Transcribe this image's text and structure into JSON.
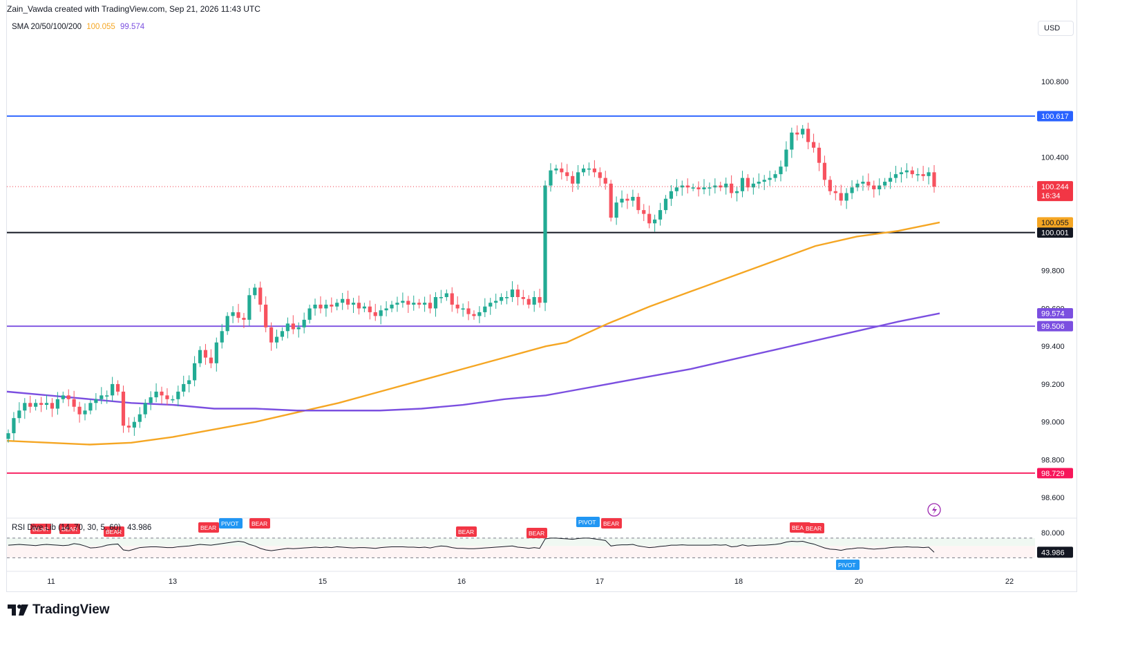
{
  "header": {
    "created_by": "Zain_Vawda created with TradingView.com, Sep 21, 2026 11:43 UTC"
  },
  "sma_legend": {
    "label": "SMA 20/50/100/200",
    "value_1": "100.055",
    "value_2": "99.574",
    "color_1": "#f5a623",
    "color_2": "#7b4fe0"
  },
  "currency": "USD",
  "rsi_legend": {
    "label": "RSI Dive Lib (14, 70, 30, 5, 60)",
    "value": "43.986"
  },
  "footer": {
    "brand": "TradingView"
  },
  "chart_data": [
    {
      "type": "candlestick",
      "price_axis": {
        "ticks": [
          "100.800",
          "100.400",
          "99.800",
          "99.600",
          "99.400",
          "99.200",
          "99.000",
          "98.800",
          "98.600"
        ],
        "range": [
          98.52,
          100.98
        ]
      },
      "time_axis": {
        "ticks": [
          "11",
          "13",
          "15",
          "16",
          "17",
          "18",
          "20",
          "22"
        ]
      },
      "horizontal_lines": [
        {
          "name": "resistance",
          "value": 100.617,
          "label": "100.617",
          "color": "#2962ff"
        },
        {
          "name": "support",
          "value": 100.001,
          "label": "100.001",
          "color": "#131722"
        },
        {
          "name": "support-2",
          "value": 99.506,
          "label": "99.506",
          "color": "#7b4fe0"
        },
        {
          "name": "support-3",
          "value": 98.729,
          "label": "98.729",
          "color": "#f7165a"
        }
      ],
      "last_price": {
        "value": "100.244",
        "countdown": "16:34",
        "color": "#f23645"
      },
      "sma_tags": [
        {
          "value": "100.055",
          "color": "#f5a623"
        },
        {
          "value": "99.574",
          "color": "#7b4fe0"
        }
      ],
      "close_series": [
        98.94,
        99.02,
        99.06,
        99.1,
        99.08,
        99.1,
        99.09,
        99.1,
        99.07,
        99.12,
        99.14,
        99.12,
        99.08,
        99.04,
        99.06,
        99.1,
        99.12,
        99.14,
        99.14,
        99.2,
        99.16,
        98.98,
        98.97,
        99.0,
        99.04,
        99.1,
        99.13,
        99.16,
        99.14,
        99.12,
        99.12,
        99.16,
        99.2,
        99.22,
        99.31,
        99.38,
        99.34,
        99.31,
        99.42,
        99.48,
        99.56,
        99.58,
        99.55,
        99.54,
        99.67,
        99.71,
        99.62,
        99.5,
        99.42,
        99.45,
        99.48,
        99.52,
        99.49,
        99.5,
        99.54,
        99.6,
        99.62,
        99.6,
        99.62,
        99.61,
        99.63,
        99.65,
        99.62,
        99.63,
        99.6,
        99.61,
        99.58,
        99.56,
        99.59,
        99.6,
        99.62,
        99.63,
        99.64,
        99.62,
        99.63,
        99.62,
        99.63,
        99.6,
        99.66,
        99.66,
        99.68,
        99.62,
        99.6,
        99.6,
        99.57,
        99.56,
        99.58,
        99.61,
        99.63,
        99.64,
        99.66,
        99.66,
        99.7,
        99.66,
        99.65,
        99.62,
        99.66,
        99.63,
        100.25,
        100.33,
        100.34,
        100.32,
        100.3,
        100.26,
        100.32,
        100.34,
        100.34,
        100.32,
        100.29,
        100.26,
        100.08,
        100.16,
        100.18,
        100.17,
        100.19,
        100.12,
        100.1,
        100.05,
        100.07,
        100.12,
        100.18,
        100.22,
        100.24,
        100.25,
        100.24,
        100.24,
        100.23,
        100.24,
        100.24,
        100.25,
        100.24,
        100.26,
        100.21,
        100.22,
        100.29,
        100.24,
        100.26,
        100.27,
        100.28,
        100.29,
        100.31,
        100.35,
        100.44,
        100.53,
        100.52,
        100.55,
        100.48,
        100.45,
        100.37,
        100.28,
        100.22,
        100.21,
        100.17,
        100.21,
        100.24,
        100.26,
        100.27,
        100.25,
        100.23,
        100.25,
        100.27,
        100.29,
        100.31,
        100.32,
        100.33,
        100.31,
        100.31,
        100.3,
        100.32,
        100.244
      ],
      "series": [
        {
          "name": "SMA 100",
          "color": "#f5a623",
          "points": [
            [
              0,
              98.9
            ],
            [
              60,
              98.89
            ],
            [
              120,
              98.88
            ],
            [
              180,
              98.89
            ],
            [
              240,
              98.92
            ],
            [
              300,
              98.96
            ],
            [
              360,
              99.0
            ],
            [
              420,
              99.05
            ],
            [
              480,
              99.1
            ],
            [
              540,
              99.16
            ],
            [
              600,
              99.22
            ],
            [
              660,
              99.28
            ],
            [
              720,
              99.34
            ],
            [
              780,
              99.4
            ],
            [
              810,
              99.42
            ],
            [
              870,
              99.52
            ],
            [
              930,
              99.61
            ],
            [
              990,
              99.69
            ],
            [
              1050,
              99.77
            ],
            [
              1110,
              99.85
            ],
            [
              1170,
              99.93
            ],
            [
              1230,
              99.98
            ],
            [
              1290,
              100.01
            ],
            [
              1350,
              100.055
            ]
          ]
        },
        {
          "name": "SMA 200",
          "color": "#7b4fe0",
          "points": [
            [
              0,
              99.16
            ],
            [
              60,
              99.14
            ],
            [
              120,
              99.12
            ],
            [
              180,
              99.1
            ],
            [
              240,
              99.09
            ],
            [
              300,
              99.07
            ],
            [
              360,
              99.07
            ],
            [
              420,
              99.06
            ],
            [
              480,
              99.06
            ],
            [
              540,
              99.06
            ],
            [
              600,
              99.07
            ],
            [
              660,
              99.09
            ],
            [
              720,
              99.12
            ],
            [
              780,
              99.14
            ],
            [
              810,
              99.16
            ],
            [
              870,
              99.2
            ],
            [
              930,
              99.24
            ],
            [
              990,
              99.28
            ],
            [
              1050,
              99.33
            ],
            [
              1110,
              99.38
            ],
            [
              1170,
              99.43
            ],
            [
              1230,
              99.48
            ],
            [
              1290,
              99.53
            ],
            [
              1350,
              99.574
            ]
          ]
        }
      ]
    },
    {
      "type": "line",
      "name": "RSI",
      "levels": [
        "80.000"
      ],
      "value": "43.986",
      "signals": [
        {
          "label": "BEAR"
        },
        {
          "label": "BEAR"
        },
        {
          "label": "BEAR"
        },
        {
          "label": "BEAR"
        },
        {
          "label": "PIVOT"
        },
        {
          "label": "BEAR"
        },
        {
          "label": "BEAR"
        },
        {
          "label": "BEAR"
        },
        {
          "label": "PIVOT"
        },
        {
          "label": "BEAR"
        },
        {
          "label": "BEAR"
        },
        {
          "label": "BEAR"
        },
        {
          "label": "PIVOT"
        }
      ],
      "values": [
        62,
        63,
        64,
        63,
        62,
        61,
        63,
        64,
        63,
        62,
        61,
        62,
        66,
        64,
        60,
        55,
        56,
        58,
        62,
        64,
        65,
        50,
        48,
        52,
        56,
        57,
        58,
        58,
        57,
        56,
        56,
        58,
        59,
        60,
        62,
        64,
        63,
        62,
        64,
        66,
        68,
        70,
        72,
        70,
        64,
        60,
        54,
        50,
        48,
        50,
        52,
        54,
        53,
        54,
        55,
        56,
        57,
        56,
        57,
        56,
        58,
        57,
        56,
        55,
        56,
        56,
        55,
        54,
        56,
        57,
        58,
        58,
        58,
        57,
        57,
        56,
        57,
        55,
        58,
        60,
        59,
        56,
        54,
        54,
        53,
        53,
        54,
        55,
        56,
        57,
        58,
        59,
        60,
        57,
        56,
        54,
        56,
        54,
        78,
        80,
        80,
        79,
        78,
        77,
        79,
        80,
        80,
        78,
        76,
        74,
        60,
        62,
        63,
        63,
        64,
        60,
        58,
        56,
        57,
        59,
        60,
        62,
        62,
        63,
        62,
        62,
        62,
        62,
        62,
        63,
        62,
        63,
        58,
        59,
        63,
        60,
        61,
        62,
        62,
        63,
        64,
        66,
        70,
        72,
        71,
        72,
        68,
        65,
        60,
        55,
        52,
        51,
        49,
        52,
        53,
        55,
        55,
        53,
        52,
        53,
        54,
        56,
        57,
        57,
        58,
        57,
        57,
        56,
        57,
        44
      ]
    }
  ]
}
